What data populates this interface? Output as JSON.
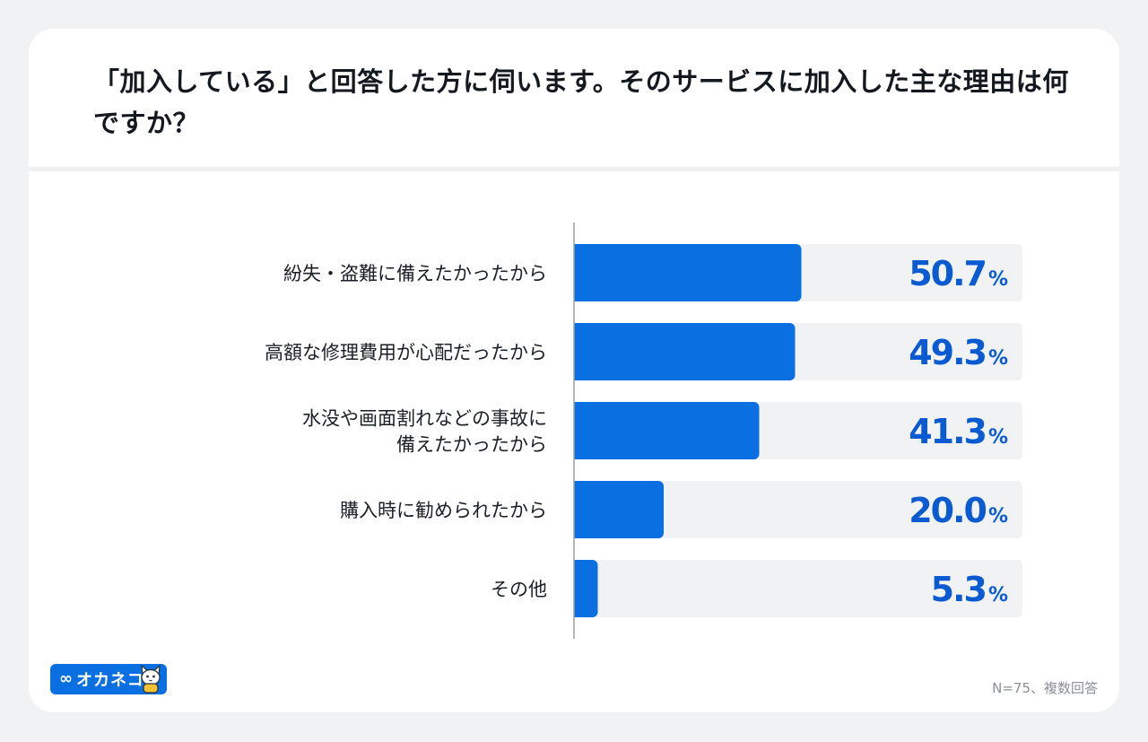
{
  "title": "「加入している」と回答した方に伺います。そのサービスに加入した主な理由は何ですか？",
  "footnote": "N=75、複数回答",
  "logo": {
    "text": "オカネコ",
    "icon": "infinity-icon",
    "mascot": "cat-mascot-icon"
  },
  "colors": {
    "bar": "#0a6fe0",
    "track": "#f1f2f4",
    "value": "#0a5bd1"
  },
  "chart_data": {
    "type": "bar",
    "orientation": "horizontal",
    "categories": [
      [
        "紛失・盗難に備えたかったから"
      ],
      [
        "高額な修理費用が心配だったから"
      ],
      [
        "水没や画面割れなどの事故に",
        "備えたかったから"
      ],
      [
        "購入時に勧められたから"
      ],
      [
        "その他"
      ]
    ],
    "values": [
      50.7,
      49.3,
      41.3,
      20.0,
      5.3
    ],
    "value_labels": [
      "50.7",
      "49.3",
      "41.3",
      "20.0",
      "5.3"
    ],
    "unit": "%",
    "xlim": [
      0,
      100
    ]
  }
}
